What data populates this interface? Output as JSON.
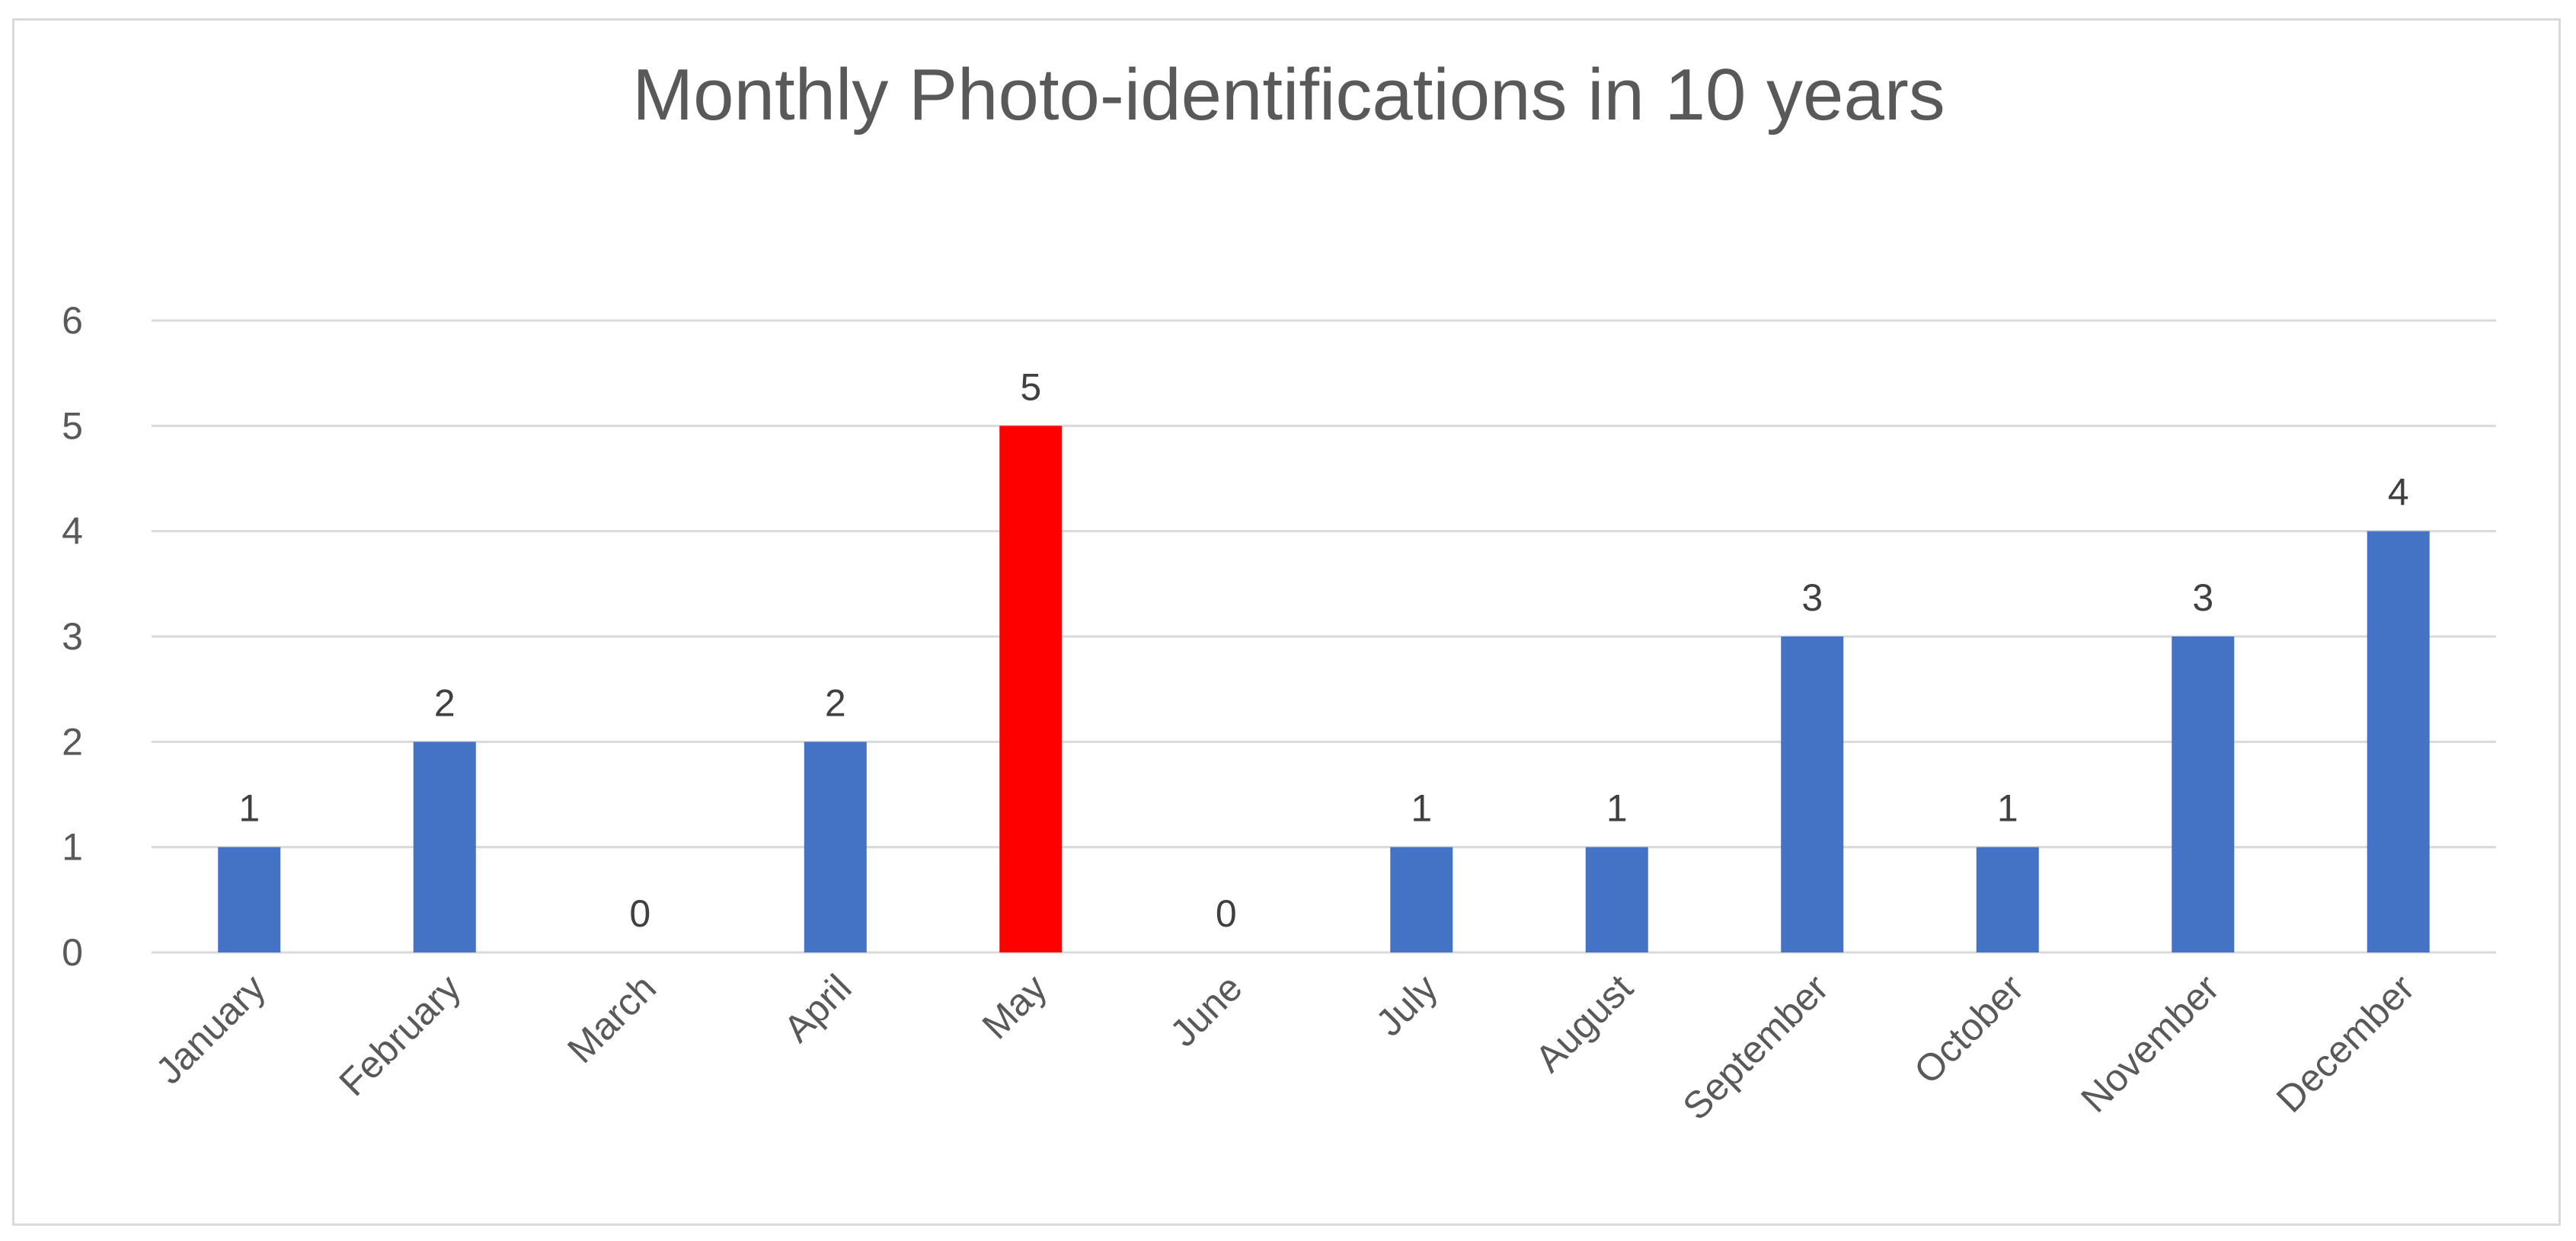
{
  "chart_data": {
    "type": "bar",
    "title": "Monthly Photo-identifications in 10 years",
    "xlabel": "",
    "ylabel": "",
    "categories": [
      "January",
      "February",
      "March",
      "April",
      "May",
      "June",
      "July",
      "August",
      "September",
      "October",
      "November",
      "December"
    ],
    "series": [
      {
        "values": [
          1,
          2,
          0,
          2,
          5,
          0,
          1,
          1,
          3,
          1,
          3,
          4
        ]
      }
    ],
    "ylim": [
      0,
      6
    ],
    "yticks": [
      "0",
      "1",
      "2",
      "3",
      "4",
      "5",
      "6"
    ],
    "data_labels": [
      "1",
      "2",
      "0",
      "2",
      "5",
      "0",
      "1",
      "1",
      "3",
      "1",
      "3",
      "4"
    ],
    "grid": true,
    "legend": "none",
    "colors": {
      "bar": "#4472c4",
      "highlight": "#ff0000",
      "highlight_category": "May"
    }
  }
}
